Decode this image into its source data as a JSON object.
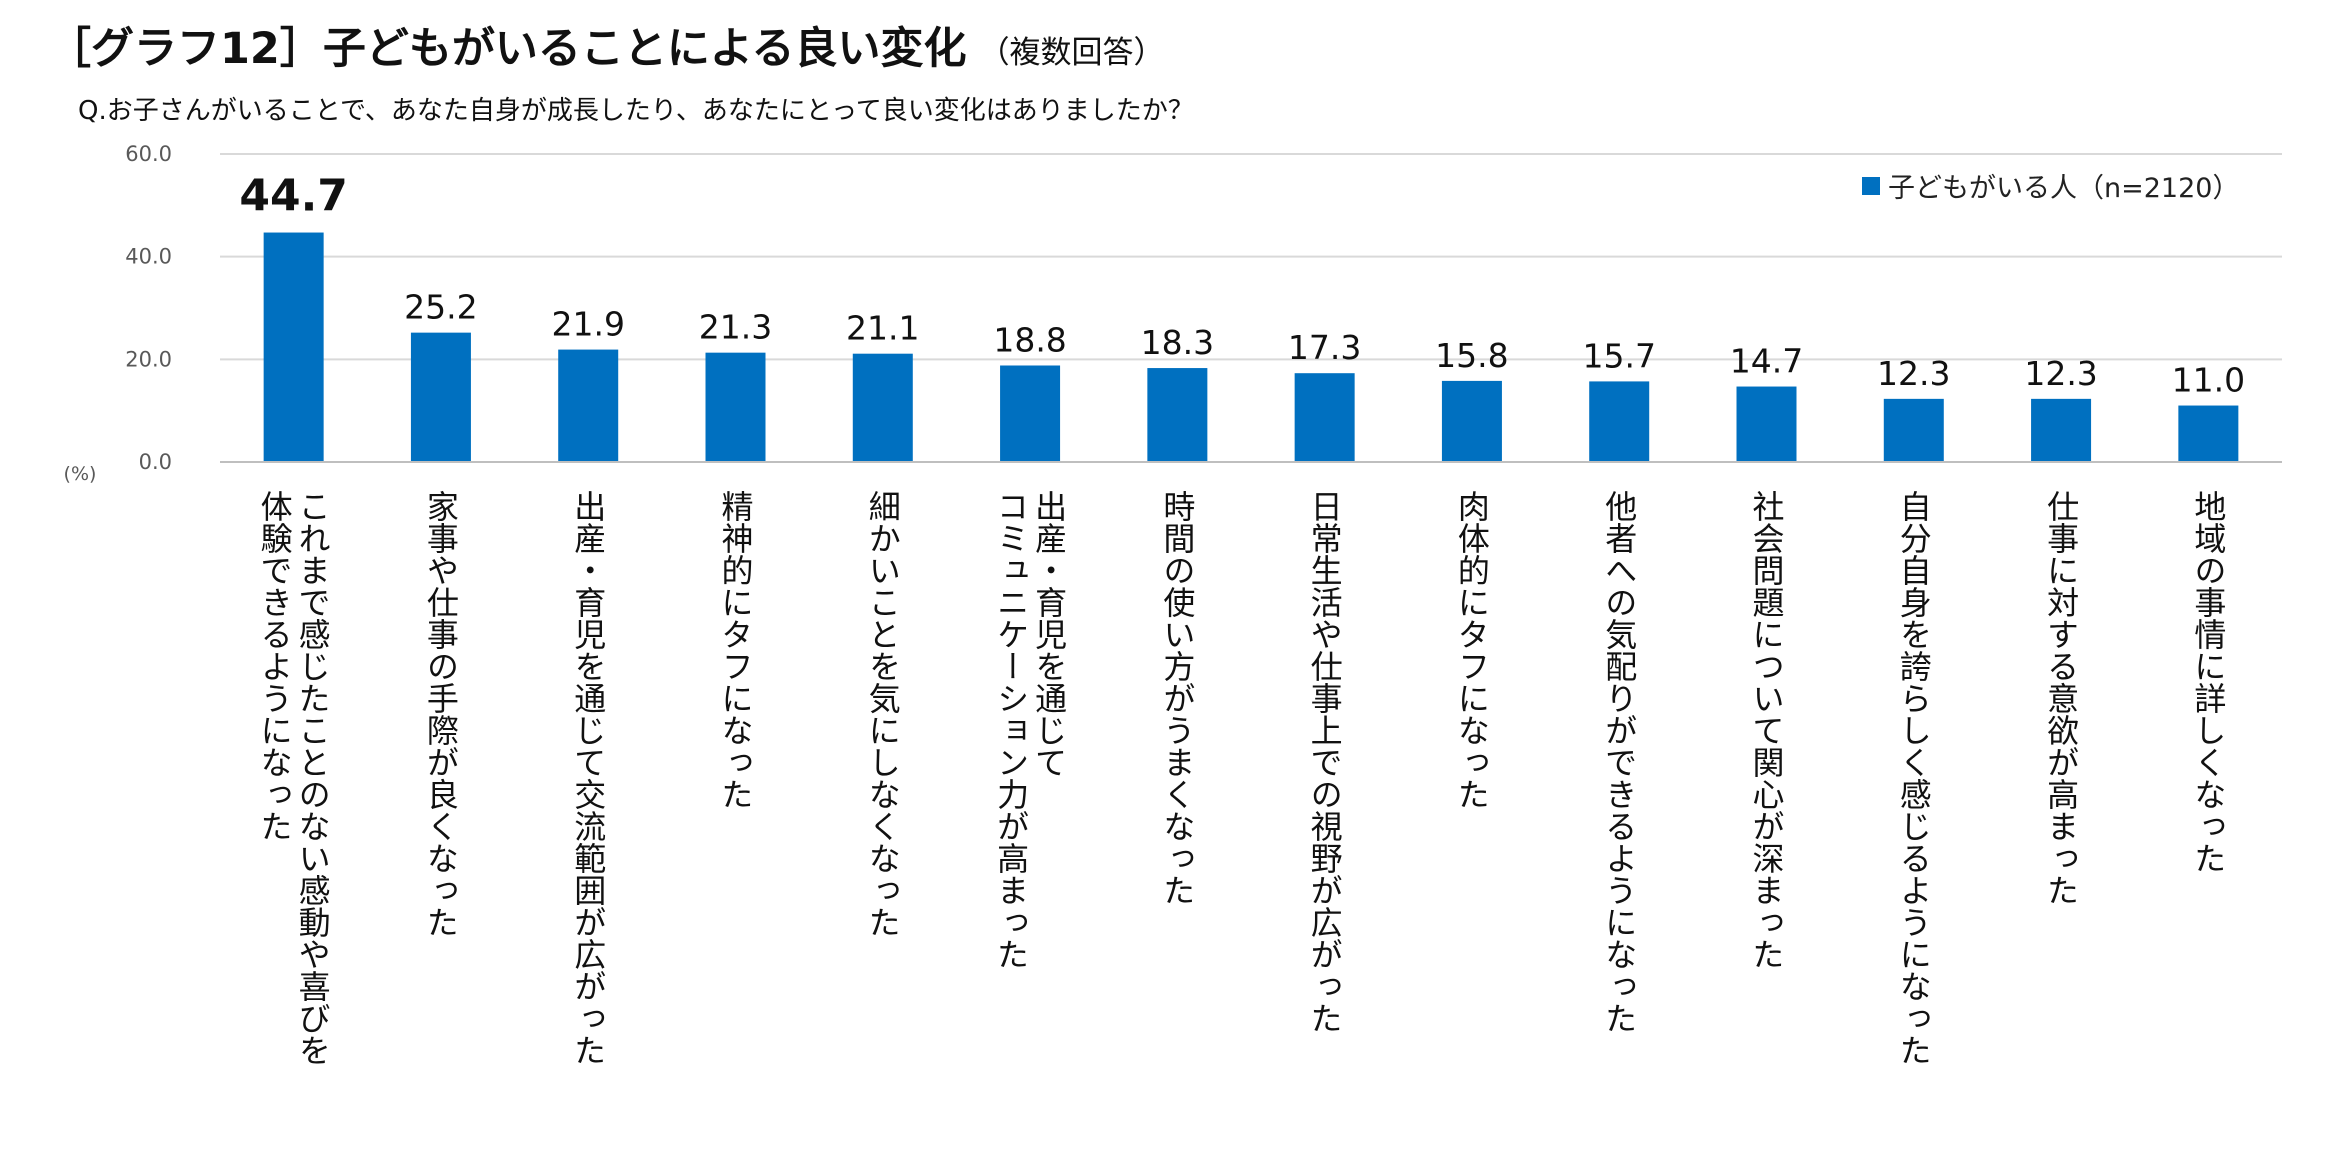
{
  "title": "［グラフ12］子どもがいることによる良い変化",
  "title_note": "（複数回答）",
  "question": "Q.お子さんがいることで、あなた自身が成長したり、あなたにとって良い変化はありましたか？",
  "colors": {
    "bar": "#0070c0",
    "grid": "#d9d9d9",
    "axis_text": "#595959"
  },
  "chart_data": {
    "type": "bar",
    "ylabel": "(%)",
    "ylim": [
      0,
      60
    ],
    "yticks": [
      "60.0",
      "40.0",
      "20.0",
      "0.0"
    ],
    "grid": true,
    "legend_position": "top-right",
    "categories": [
      "これまで感じたことのない感動や喜びを体験できるようになった",
      "家事や仕事の手際が良くなった",
      "出産・育児を通じて交流範囲が広がった",
      "精神的にタフになった",
      "細かいことを気にしなくなった",
      "出産・育児を通じてコミュニケーション力が高まった",
      "時間の使い方がうまくなった",
      "日常生活や仕事上での視野が広がった",
      "肉体的にタフになった",
      "他者への気配りができるようになった",
      "社会問題について関心が深まった",
      "自分自身を誇らしく感じるようになった",
      "仕事に対する意欲が高まった",
      "地域の事情に詳しくなった"
    ],
    "category_lines": [
      [
        "これまで感じたことのない感動や喜びを",
        "体験できるようになった"
      ],
      [
        "家事や仕事の手際が良くなった"
      ],
      [
        "出産・育児を通じて交流範囲が広がった"
      ],
      [
        "精神的にタフになった"
      ],
      [
        "細かいことを気にしなくなった"
      ],
      [
        "出産・育児を通じて",
        "コミュニケーション力が高まった"
      ],
      [
        "時間の使い方がうまくなった"
      ],
      [
        "日常生活や仕事上での視野が広がった"
      ],
      [
        "肉体的にタフになった"
      ],
      [
        "他者への気配りができるようになった"
      ],
      [
        "社会問題について関心が深まった"
      ],
      [
        "自分自身を誇らしく感じるようになった"
      ],
      [
        "仕事に対する意欲が高まった"
      ],
      [
        "地域の事情に詳しくなった"
      ]
    ],
    "series": [
      {
        "name": "子どもがいる人（n=2120）",
        "values": [
          44.7,
          25.2,
          21.9,
          21.3,
          21.1,
          18.8,
          18.3,
          17.3,
          15.8,
          15.7,
          14.7,
          12.3,
          12.3,
          11.0
        ],
        "labels": [
          "44.7",
          "25.2",
          "21.9",
          "21.3",
          "21.1",
          "18.8",
          "18.3",
          "17.3",
          "15.8",
          "15.7",
          "14.7",
          "12.3",
          "12.3",
          "11.0"
        ]
      }
    ]
  }
}
